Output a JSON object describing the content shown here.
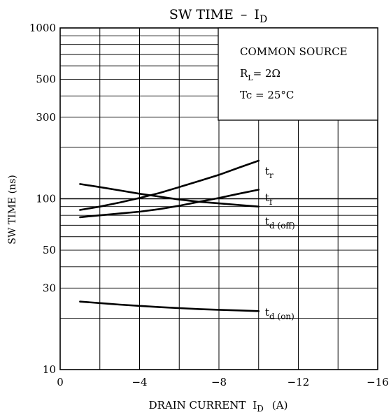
{
  "chart_data": {
    "type": "line",
    "title": "SW TIME",
    "title_symbol": "I",
    "title_symbol_sub": "D",
    "title_dash": "–",
    "xlabel": "DRAIN CURRENT",
    "xlabel_symbol": "I",
    "xlabel_symbol_sub": "D",
    "xlabel_unit": "(A)",
    "ylabel": "SW TIME  (ns)",
    "y_scale": "log",
    "xlim": [
      0,
      -16
    ],
    "ylim": [
      10,
      1000
    ],
    "x_ticks": [
      0,
      -4,
      -8,
      -12,
      -16
    ],
    "x_tick_labels": [
      "0",
      "−4",
      "−8",
      "−12",
      "−16"
    ],
    "y_ticks": [
      10,
      30,
      50,
      100,
      300,
      500,
      1000
    ],
    "y_tick_labels": [
      "10",
      "30",
      "50",
      "100",
      "300",
      "500",
      "1000"
    ],
    "grid": true,
    "legend_box": {
      "placement": "top-right",
      "line1": "COMMON SOURCE",
      "line2_main": "R",
      "line2_sub": "L",
      "line2_value": "= 2Ω",
      "line3": "Tc = 25°C"
    },
    "series": [
      {
        "name": "t",
        "sub": "r",
        "x": [
          -1,
          -2,
          -3,
          -4,
          -5,
          -6,
          -7,
          -8,
          -9,
          -10
        ],
        "y": [
          86,
          90,
          95,
          101,
          108,
          117,
          127,
          138,
          152,
          167
        ]
      },
      {
        "name": "t",
        "sub": "f",
        "x": [
          -1,
          -2,
          -3,
          -4,
          -5,
          -6,
          -7,
          -8,
          -9,
          -10
        ],
        "y": [
          78,
          80,
          82,
          84,
          87,
          91,
          96,
          101,
          107,
          113
        ]
      },
      {
        "name": "t",
        "sub": "d (off)",
        "x": [
          -1,
          -2,
          -3,
          -4,
          -5,
          -6,
          -7,
          -8,
          -9,
          -10
        ],
        "y": [
          122,
          117,
          112,
          107,
          103,
          99,
          96,
          94,
          92,
          90
        ]
      },
      {
        "name": "t",
        "sub": "d (on)",
        "x": [
          -1,
          -2,
          -3,
          -4,
          -5,
          -6,
          -7,
          -8,
          -9,
          -10
        ],
        "y": [
          25,
          24.5,
          24,
          23.6,
          23.2,
          22.9,
          22.6,
          22.4,
          22.2,
          22
        ]
      }
    ]
  }
}
